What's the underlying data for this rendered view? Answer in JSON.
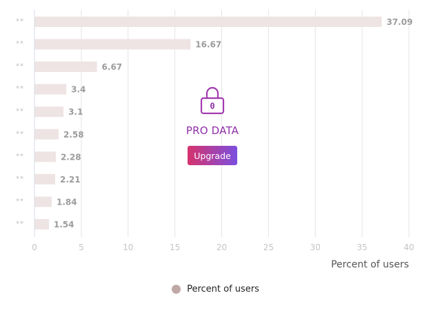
{
  "chart_data": {
    "type": "bar",
    "orientation": "horizontal",
    "categories": [
      "**",
      "**",
      "**",
      "**",
      "**",
      "**",
      "**",
      "**",
      "**",
      "**"
    ],
    "values": [
      37.09,
      16.67,
      6.67,
      3.4,
      3.1,
      2.58,
      2.28,
      2.21,
      1.84,
      1.54
    ],
    "value_labels": [
      "37.09",
      "16.67",
      "6.67",
      "3.4",
      "3.1",
      "2.58",
      "2.28",
      "2.21",
      "1.84",
      "1.54"
    ],
    "x_ticks": [
      "0",
      "5",
      "10",
      "15",
      "20",
      "25",
      "30",
      "35",
      "40"
    ],
    "xlim": [
      0,
      40
    ],
    "xlabel": "Percent of users",
    "grid": true,
    "legend": {
      "position": "bottom",
      "entries": [
        "Percent of users"
      ]
    },
    "colors": {
      "bar": "#ede4e3",
      "grid": "#e4e4e4",
      "legend_swatch": "#bfa8a6"
    }
  },
  "overlay": {
    "lock_digit": "0",
    "pro_label": "PRO DATA",
    "upgrade_label": "Upgrade",
    "icon": "lock-icon"
  }
}
